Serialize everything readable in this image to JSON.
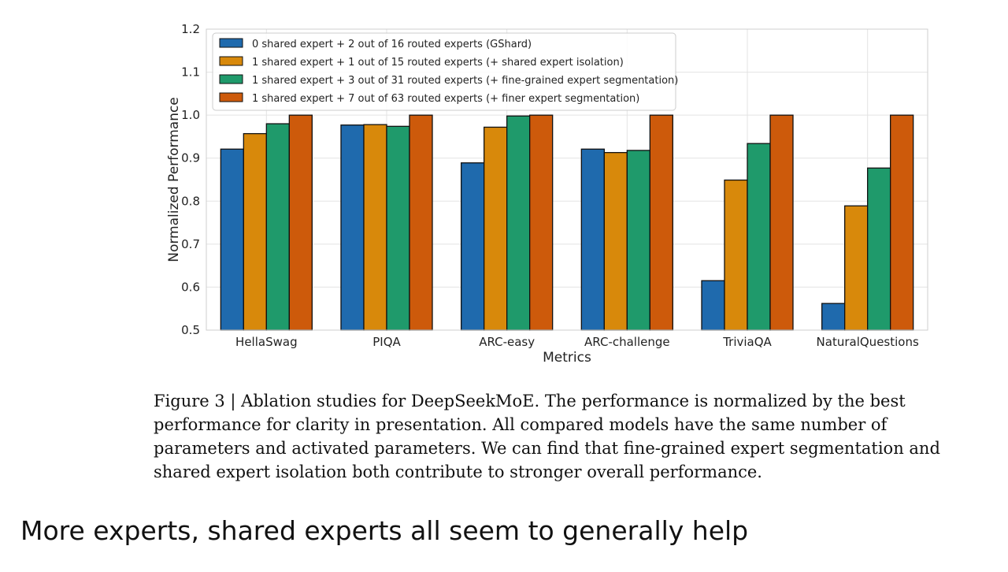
{
  "chart_data": {
    "type": "bar",
    "title": "",
    "xlabel": "Metrics",
    "ylabel": "Normalized Performance",
    "ylim": [
      0.5,
      1.2
    ],
    "yticks": [
      "0.5",
      "0.6",
      "0.7",
      "0.8",
      "0.9",
      "1.0",
      "1.1",
      "1.2"
    ],
    "grid": true,
    "legend_position": "top-left",
    "categories": [
      "HellaSwag",
      "PIQA",
      "ARC-easy",
      "ARC-challenge",
      "TriviaQA",
      "NaturalQuestions"
    ],
    "series": [
      {
        "name": "0 shared expert + 2 out of 16 routed experts (GShard)",
        "color": "#1f6aad",
        "values": [
          0.921,
          0.977,
          0.889,
          0.921,
          0.615,
          0.562
        ]
      },
      {
        "name": "1 shared expert + 1 out of 15 routed experts (+ shared expert isolation)",
        "color": "#d8890b",
        "values": [
          0.957,
          0.978,
          0.972,
          0.913,
          0.849,
          0.789
        ]
      },
      {
        "name": "1 shared expert + 3 out of 31 routed experts (+ fine-grained expert segmentation)",
        "color": "#1f9a6b",
        "values": [
          0.98,
          0.974,
          0.998,
          0.918,
          0.934,
          0.877
        ]
      },
      {
        "name": "1 shared expert + 7 out of 63 routed experts (+ finer expert segmentation)",
        "color": "#cd5a0b",
        "values": [
          1.0,
          1.0,
          1.0,
          1.0,
          1.0,
          1.0
        ]
      }
    ]
  },
  "caption": "Figure 3 | Ablation studies for DeepSeekMoE. The performance is normalized by the best performance for clarity in presentation. All compared models have the same number of parameters and activated parameters. We can find that fine-grained expert segmentation and shared expert isolation both contribute to stronger overall performance.",
  "slide_note": "More experts, shared experts all seem to generally help"
}
